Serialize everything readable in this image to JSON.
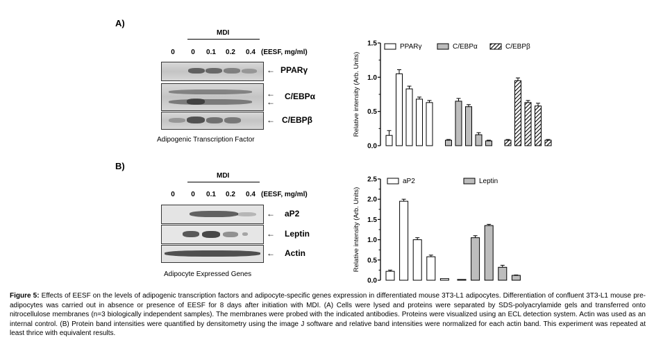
{
  "panelA": {
    "label": "A)",
    "mdi": "MDI",
    "lanes": [
      "0",
      "0",
      "0.1",
      "0.2",
      "0.4"
    ],
    "eesf": "(EESF, mg/ml)",
    "bands": [
      "PPARγ",
      "C/EBPα",
      "C/EBPβ"
    ],
    "subtitle": "Adipogenic Transcription Factor"
  },
  "panelB": {
    "label": "B)",
    "mdi": "MDI",
    "lanes": [
      "0",
      "0",
      "0.1",
      "0.2",
      "0.4"
    ],
    "eesf": "(EESF, mg/ml)",
    "bands": [
      "aP2",
      "Leptin",
      "Actin"
    ],
    "subtitle": "Adipocyte Expressed Genes"
  },
  "chart_data": [
    {
      "type": "bar",
      "ylabel": "Relative intensity (Arb. Units)",
      "ylim": [
        0,
        1.5
      ],
      "yticks": [
        "0.0",
        "0.5",
        "1.0",
        "1.5"
      ],
      "legend_placement": "top",
      "series": [
        {
          "name": "PPARγ",
          "pattern": "white",
          "values": [
            0.15,
            1.05,
            0.83,
            0.68,
            0.63
          ],
          "errors": [
            0.07,
            0.06,
            0.04,
            0.03,
            0.03
          ]
        },
        {
          "name": "C/EBPα",
          "pattern": "gray",
          "values": [
            0.08,
            0.65,
            0.57,
            0.16,
            0.07
          ],
          "errors": [
            0.01,
            0.04,
            0.03,
            0.03,
            0.01
          ]
        },
        {
          "name": "C/EBPβ",
          "pattern": "hatched",
          "values": [
            0.08,
            0.95,
            0.63,
            0.58,
            0.08
          ],
          "errors": [
            0.01,
            0.04,
            0.03,
            0.04,
            0.01
          ]
        }
      ]
    },
    {
      "type": "bar",
      "ylabel": "Relative intensity (Arb. Units)",
      "ylim": [
        0,
        2.5
      ],
      "yticks": [
        "0.0",
        "0.5",
        "1.0",
        "1.5",
        "2.0",
        "2.5"
      ],
      "legend_placement": "top",
      "series": [
        {
          "name": "aP2",
          "pattern": "white",
          "values": [
            0.22,
            1.95,
            1.0,
            0.58,
            0.04
          ],
          "errors": [
            0.03,
            0.05,
            0.05,
            0.04,
            0.0
          ]
        },
        {
          "name": "Leptin",
          "pattern": "gray",
          "values": [
            0.02,
            1.05,
            1.35,
            0.32,
            0.12
          ],
          "errors": [
            0.0,
            0.05,
            0.03,
            0.05,
            0.01
          ]
        }
      ]
    }
  ],
  "caption": {
    "lead": "Figure 5:",
    "text": " Effects of EESF on the levels of adipogenic transcription factors and adipocyte-specific genes expression in differentiated mouse 3T3-L1 adipocytes. Differentiation of confluent 3T3-L1 mouse pre-adipocytes was carried out in absence or presence of EESF for 8 days after initiation with MDI. (A) Cells were lysed and proteins were separated by SDS-polyacrylamide gels and transferred onto nitrocellulose membranes (n=3 biologically independent samples). The membranes were probed with the indicated antibodies. Proteins were visualized using an ECL detection system. Actin was used as an internal control. (B) Protein band intensities were quantified by densitometry using the image J software and relative band intensities were normalized for each actin band. This experiment was repeated at least thrice with equivalent results."
  }
}
